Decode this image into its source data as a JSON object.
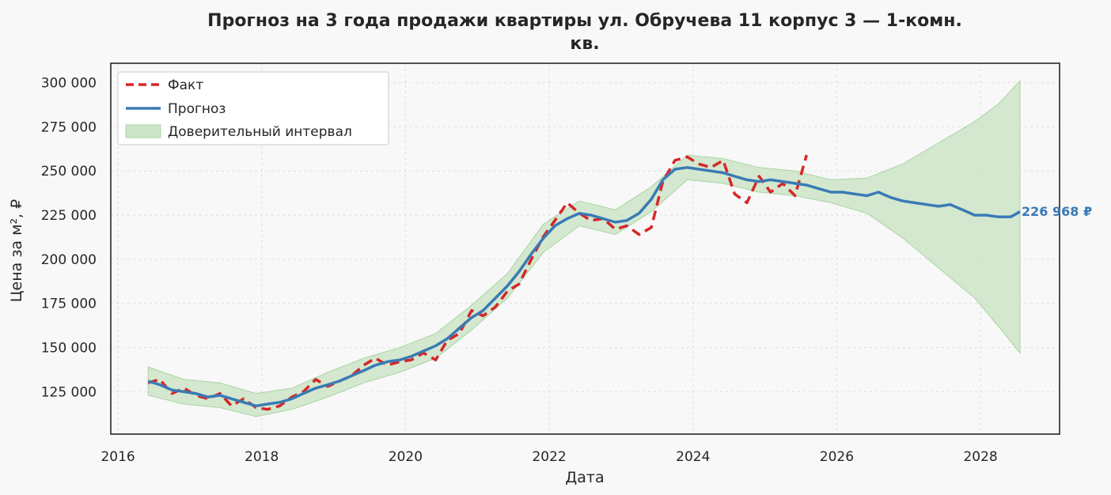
{
  "chart_data": {
    "type": "line",
    "title_line1": "Прогноз на 3 года продажи квартиры  ул. Обручева 11 корпус 3 — 1-комн.",
    "title_line2": "кв.",
    "xlabel": "Дата",
    "ylabel": "Цена за м², ₽",
    "xlim": [
      2015.9,
      2029.1
    ],
    "ylim": [
      101000,
      311000
    ],
    "x_ticks": [
      2016,
      2018,
      2020,
      2022,
      2024,
      2026,
      2028
    ],
    "y_ticks": [
      125000,
      150000,
      175000,
      200000,
      225000,
      250000,
      275000,
      300000
    ],
    "y_tick_labels": [
      "125 000",
      "150 000",
      "175 000",
      "200 000",
      "225 000",
      "250 000",
      "275 000",
      "300 000"
    ],
    "grid": true,
    "legend_position": "top-left",
    "end_label": "226 968 ₽",
    "colors": {
      "fact": "#d62728",
      "forecast": "#3a7ab5",
      "interval_fill": "#cce5c8",
      "interval_edge": "#a9d3a3"
    },
    "series": [
      {
        "name": "Факт",
        "style": "dashed",
        "x": [
          2016.42,
          2016.58,
          2016.75,
          2016.92,
          2017.08,
          2017.25,
          2017.42,
          2017.58,
          2017.75,
          2017.92,
          2018.08,
          2018.25,
          2018.42,
          2018.58,
          2018.75,
          2018.92,
          2019.08,
          2019.25,
          2019.42,
          2019.58,
          2019.75,
          2019.92,
          2020.08,
          2020.25,
          2020.42,
          2020.58,
          2020.75,
          2020.92,
          2021.08,
          2021.25,
          2021.42,
          2021.58,
          2021.75,
          2021.92,
          2022.08,
          2022.25,
          2022.42,
          2022.58,
          2022.75,
          2022.92,
          2023.08,
          2023.25,
          2023.42,
          2023.58,
          2023.75,
          2023.92,
          2024.08,
          2024.25,
          2024.42,
          2024.58,
          2024.75,
          2024.92,
          2025.08,
          2025.25,
          2025.42,
          2025.58
        ],
        "values": [
          130000,
          132000,
          124000,
          127000,
          123000,
          121000,
          124000,
          117000,
          121000,
          116000,
          115000,
          117000,
          122000,
          125000,
          132000,
          128000,
          131000,
          134000,
          140000,
          144000,
          140000,
          142000,
          143000,
          147000,
          143000,
          154000,
          158000,
          171000,
          168000,
          173000,
          182000,
          186000,
          200000,
          213000,
          222000,
          232000,
          226000,
          222000,
          223000,
          217000,
          219000,
          214000,
          218000,
          244000,
          256000,
          258000,
          254000,
          252000,
          256000,
          237000,
          232000,
          247000,
          238000,
          243000,
          236000,
          259000
        ]
      },
      {
        "name": "Прогноз",
        "style": "solid",
        "x": [
          2016.42,
          2016.58,
          2016.75,
          2016.92,
          2017.08,
          2017.25,
          2017.42,
          2017.58,
          2017.75,
          2017.92,
          2018.08,
          2018.25,
          2018.42,
          2018.58,
          2018.75,
          2018.92,
          2019.08,
          2019.25,
          2019.42,
          2019.58,
          2019.75,
          2019.92,
          2020.08,
          2020.25,
          2020.42,
          2020.58,
          2020.75,
          2020.92,
          2021.08,
          2021.25,
          2021.42,
          2021.58,
          2021.75,
          2021.92,
          2022.08,
          2022.25,
          2022.42,
          2022.58,
          2022.75,
          2022.92,
          2023.08,
          2023.25,
          2023.42,
          2023.58,
          2023.75,
          2023.92,
          2024.08,
          2024.25,
          2024.42,
          2024.58,
          2024.75,
          2024.92,
          2025.08,
          2025.25,
          2025.42,
          2025.58,
          2025.75,
          2025.92,
          2026.08,
          2026.25,
          2026.42,
          2026.58,
          2026.75,
          2026.92,
          2027.08,
          2027.25,
          2027.42,
          2027.58,
          2027.75,
          2027.92,
          2028.08,
          2028.25,
          2028.42,
          2028.55
        ],
        "values": [
          131000,
          129000,
          126000,
          125000,
          124000,
          122000,
          123000,
          121000,
          119000,
          117000,
          118000,
          119000,
          121000,
          124000,
          127000,
          129000,
          131000,
          134000,
          137000,
          140000,
          142000,
          143000,
          145000,
          148000,
          151000,
          155000,
          161000,
          167000,
          171000,
          178000,
          185000,
          193000,
          203000,
          212000,
          219000,
          223000,
          226000,
          225000,
          223000,
          221000,
          222000,
          226000,
          234000,
          245000,
          251000,
          252000,
          251000,
          250000,
          249000,
          247000,
          245000,
          244000,
          245000,
          244000,
          243000,
          242000,
          240000,
          238000,
          238000,
          237000,
          236000,
          238000,
          235000,
          233000,
          232000,
          231000,
          230000,
          231000,
          228000,
          225000,
          225000,
          224000,
          224000,
          226968
        ]
      },
      {
        "name": "Доверительный интервал",
        "style": "band",
        "x": [
          2016.42,
          2016.92,
          2017.42,
          2017.92,
          2018.42,
          2018.92,
          2019.42,
          2019.92,
          2020.42,
          2020.92,
          2021.42,
          2021.92,
          2022.42,
          2022.92,
          2023.42,
          2023.92,
          2024.42,
          2024.92,
          2025.42,
          2025.92,
          2026.42,
          2026.92,
          2027.42,
          2027.92,
          2028.25,
          2028.55
        ],
        "lower": [
          123000,
          118000,
          116000,
          111000,
          115000,
          122000,
          130000,
          136000,
          144000,
          160000,
          178000,
          204000,
          219000,
          214000,
          227000,
          245000,
          243000,
          238000,
          236000,
          232000,
          226000,
          212000,
          195000,
          178000,
          162000,
          147000
        ],
        "upper": [
          139000,
          132000,
          130000,
          124000,
          127000,
          136000,
          144000,
          150000,
          158000,
          174000,
          192000,
          220000,
          233000,
          228000,
          241000,
          259000,
          257000,
          252000,
          250000,
          245000,
          246000,
          254000,
          266000,
          278000,
          288000,
          301000
        ]
      }
    ]
  }
}
